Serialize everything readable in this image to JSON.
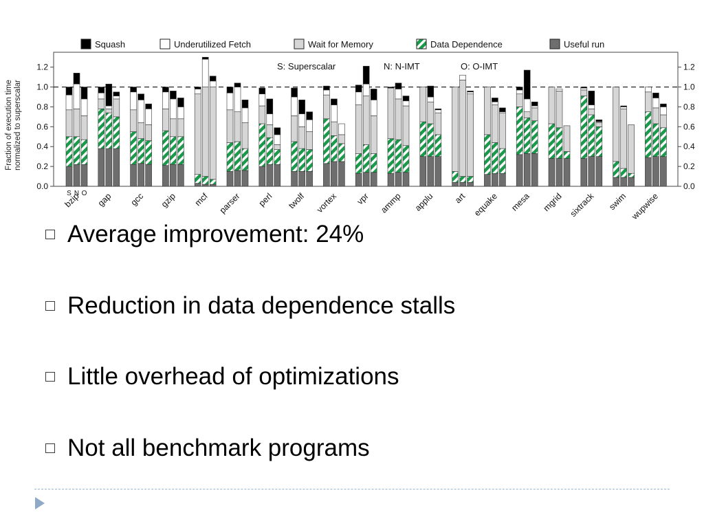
{
  "chart_data": {
    "type": "stacked-bar",
    "ylabel": [
      "Fraction of execution time",
      "normalized to superscalar"
    ],
    "ylim": [
      0,
      1.35
    ],
    "yticks": [
      "0.0",
      "0.2",
      "0.4",
      "0.6",
      "0.8",
      "1.0",
      "1.2"
    ],
    "reference_line": 1.0,
    "annotations": [
      "S: Superscalar",
      "N: N-IMT",
      "O: O-IMT"
    ],
    "bar_sublabels": [
      "S",
      "N",
      "O"
    ],
    "legend": [
      "Squash",
      "Underutilized Fetch",
      "Wait for Memory",
      "Data Dependence",
      "Useful run"
    ],
    "legend_position": "top",
    "colors": {
      "squash": "#000000",
      "fetch": "#ffffff",
      "memory": "#d6d6d6",
      "dependence": "#1a9a4a",
      "useful": "#6e6e6e"
    },
    "benchmarks": [
      {
        "name": "bzip",
        "bars": [
          [
            0.2,
            0.3,
            0.27,
            0.15,
            0.08
          ],
          [
            0.22,
            0.28,
            0.28,
            0.25,
            0.11
          ],
          [
            0.22,
            0.25,
            0.24,
            0.17,
            0.12
          ]
        ]
      },
      {
        "name": "gap",
        "bars": [
          [
            0.38,
            0.4,
            0.1,
            0.06,
            0.06
          ],
          [
            0.38,
            0.36,
            0.04,
            0.03,
            0.22
          ],
          [
            0.38,
            0.32,
            0.18,
            0.03,
            0.04
          ]
        ]
      },
      {
        "name": "gcc",
        "bars": [
          [
            0.22,
            0.33,
            0.22,
            0.18,
            0.05
          ],
          [
            0.23,
            0.25,
            0.16,
            0.23,
            0.06
          ],
          [
            0.22,
            0.24,
            0.16,
            0.16,
            0.05
          ]
        ]
      },
      {
        "name": "gzip",
        "bars": [
          [
            0.21,
            0.35,
            0.22,
            0.17,
            0.05
          ],
          [
            0.22,
            0.28,
            0.18,
            0.2,
            0.08
          ],
          [
            0.22,
            0.28,
            0.18,
            0.12,
            0.09
          ]
        ]
      },
      {
        "name": "mcf",
        "bars": [
          [
            0.03,
            0.09,
            0.81,
            0.05,
            0.02
          ],
          [
            0.02,
            0.08,
            0.9,
            0.28,
            0.02
          ],
          [
            0.02,
            0.05,
            0.93,
            0.06,
            0.05
          ]
        ]
      },
      {
        "name": "parser",
        "bars": [
          [
            0.15,
            0.29,
            0.33,
            0.17,
            0.06
          ],
          [
            0.16,
            0.29,
            0.3,
            0.25,
            0.04
          ],
          [
            0.16,
            0.22,
            0.26,
            0.15,
            0.08
          ]
        ]
      },
      {
        "name": "perl",
        "bars": [
          [
            0.2,
            0.43,
            0.18,
            0.12,
            0.06
          ],
          [
            0.22,
            0.27,
            0.13,
            0.11,
            0.15
          ],
          [
            0.22,
            0.15,
            0.05,
            0.1,
            0.07
          ]
        ]
      },
      {
        "name": "twolf",
        "bars": [
          [
            0.15,
            0.3,
            0.26,
            0.19,
            0.09
          ],
          [
            0.15,
            0.23,
            0.22,
            0.13,
            0.14
          ],
          [
            0.15,
            0.22,
            0.18,
            0.12,
            0.08
          ]
        ]
      },
      {
        "name": "vortex",
        "bars": [
          [
            0.23,
            0.45,
            0.24,
            0.05,
            0.04
          ],
          [
            0.25,
            0.26,
            0.14,
            0.17,
            0.06
          ],
          [
            0.25,
            0.18,
            0.09,
            0.11,
            0.0
          ]
        ]
      },
      {
        "name": "vpr",
        "bars": [
          [
            0.13,
            0.2,
            0.49,
            0.13,
            0.07
          ],
          [
            0.14,
            0.28,
            0.49,
            0.12,
            0.18
          ],
          [
            0.14,
            0.19,
            0.38,
            0.16,
            0.11
          ]
        ]
      },
      {
        "name": "ammp",
        "bars": [
          [
            0.13,
            0.35,
            0.51,
            0.0,
            0.01
          ],
          [
            0.14,
            0.33,
            0.41,
            0.1,
            0.06
          ],
          [
            0.14,
            0.27,
            0.4,
            0.05,
            0.05
          ]
        ]
      },
      {
        "name": "applu",
        "bars": [
          [
            0.3,
            0.35,
            0.35,
            0.0,
            0.0
          ],
          [
            0.3,
            0.33,
            0.22,
            0.05,
            0.11
          ],
          [
            0.3,
            0.22,
            0.22,
            0.03,
            0.01
          ]
        ]
      },
      {
        "name": "art",
        "bars": [
          [
            0.04,
            0.11,
            0.85,
            0.0,
            0.0
          ],
          [
            0.04,
            0.06,
            0.97,
            0.05,
            0.0
          ],
          [
            0.04,
            0.06,
            0.83,
            0.02,
            0.01
          ]
        ]
      },
      {
        "name": "equake",
        "bars": [
          [
            0.12,
            0.4,
            0.48,
            0.0,
            0.0
          ],
          [
            0.13,
            0.31,
            0.38,
            0.03,
            0.04
          ],
          [
            0.13,
            0.25,
            0.36,
            0.01,
            0.04
          ]
        ]
      },
      {
        "name": "mesa",
        "bars": [
          [
            0.32,
            0.48,
            0.13,
            0.04,
            0.03
          ],
          [
            0.33,
            0.36,
            0.06,
            0.13,
            0.29
          ],
          [
            0.33,
            0.33,
            0.13,
            0.02,
            0.04
          ]
        ]
      },
      {
        "name": "mgrid",
        "bars": [
          [
            0.28,
            0.35,
            0.37,
            0.0,
            0.0
          ],
          [
            0.28,
            0.31,
            0.37,
            0.02,
            0.0
          ],
          [
            0.28,
            0.07,
            0.26,
            0.0,
            0.0
          ]
        ]
      },
      {
        "name": "sixtrack",
        "bars": [
          [
            0.28,
            0.63,
            0.06,
            0.02,
            0.01
          ],
          [
            0.3,
            0.42,
            0.06,
            0.04,
            0.14
          ],
          [
            0.3,
            0.3,
            0.04,
            0.01,
            0.02
          ]
        ]
      },
      {
        "name": "swim",
        "bars": [
          [
            0.09,
            0.16,
            0.75,
            0.0,
            0.0
          ],
          [
            0.09,
            0.09,
            0.6,
            0.02,
            0.01
          ],
          [
            0.09,
            0.04,
            0.49,
            0.0,
            0.0
          ]
        ]
      },
      {
        "name": "wupwise",
        "bars": [
          [
            0.29,
            0.46,
            0.2,
            0.05,
            0.0
          ],
          [
            0.3,
            0.33,
            0.16,
            0.1,
            0.05
          ],
          [
            0.3,
            0.29,
            0.13,
            0.08,
            0.03
          ]
        ]
      }
    ]
  },
  "bullets": [
    "Average improvement: 24%",
    "Reduction in data dependence stalls",
    "Little overhead of optimizations",
    "Not all benchmark programs"
  ]
}
